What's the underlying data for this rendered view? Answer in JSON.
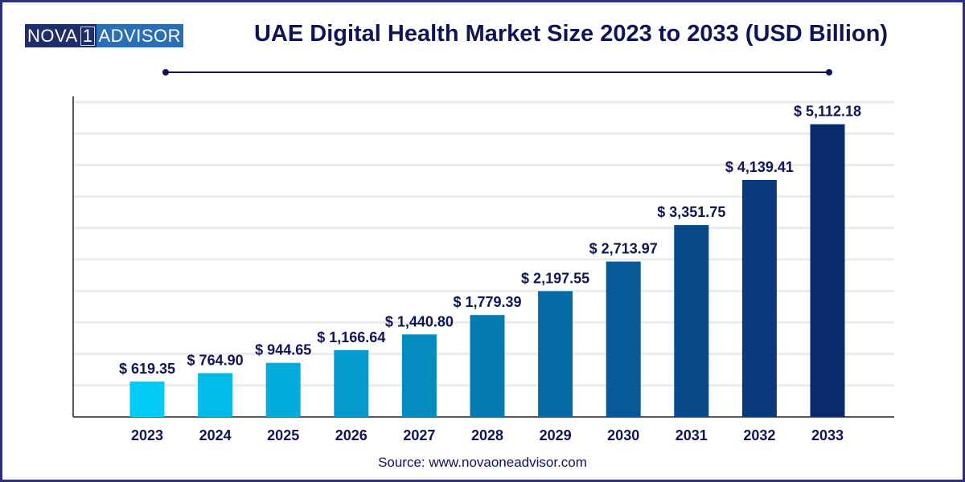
{
  "logo": {
    "left": "NOVA",
    "num": "1",
    "right": "ADVISOR"
  },
  "chart_data": {
    "type": "bar",
    "title": "UAE Digital Health Market Size 2023 to 2033 (USD Billion)",
    "categories": [
      "2023",
      "2024",
      "2025",
      "2026",
      "2027",
      "2028",
      "2029",
      "2030",
      "2031",
      "2032",
      "2033"
    ],
    "values": [
      619.35,
      764.9,
      944.65,
      1166.64,
      1440.8,
      1779.39,
      2197.55,
      2713.97,
      3351.75,
      4139.41,
      5112.18
    ],
    "data_labels": [
      "$ 619.35",
      "$ 764.90",
      "$ 944.65",
      "$ 1,166.64",
      "$ 1,440.80",
      "$ 1,779.39",
      "$ 2,197.55",
      "$ 2,713.97",
      "$ 3,351.75",
      "$ 4,139.41",
      "$ 5,112.18"
    ],
    "xlabel": "",
    "ylabel": "",
    "ylim": [
      0,
      5500
    ],
    "grid": true,
    "colors": {
      "start": "#00cbf7",
      "end": "#0a2a6e"
    }
  },
  "source": "Source: www.novaoneadvisor.com"
}
